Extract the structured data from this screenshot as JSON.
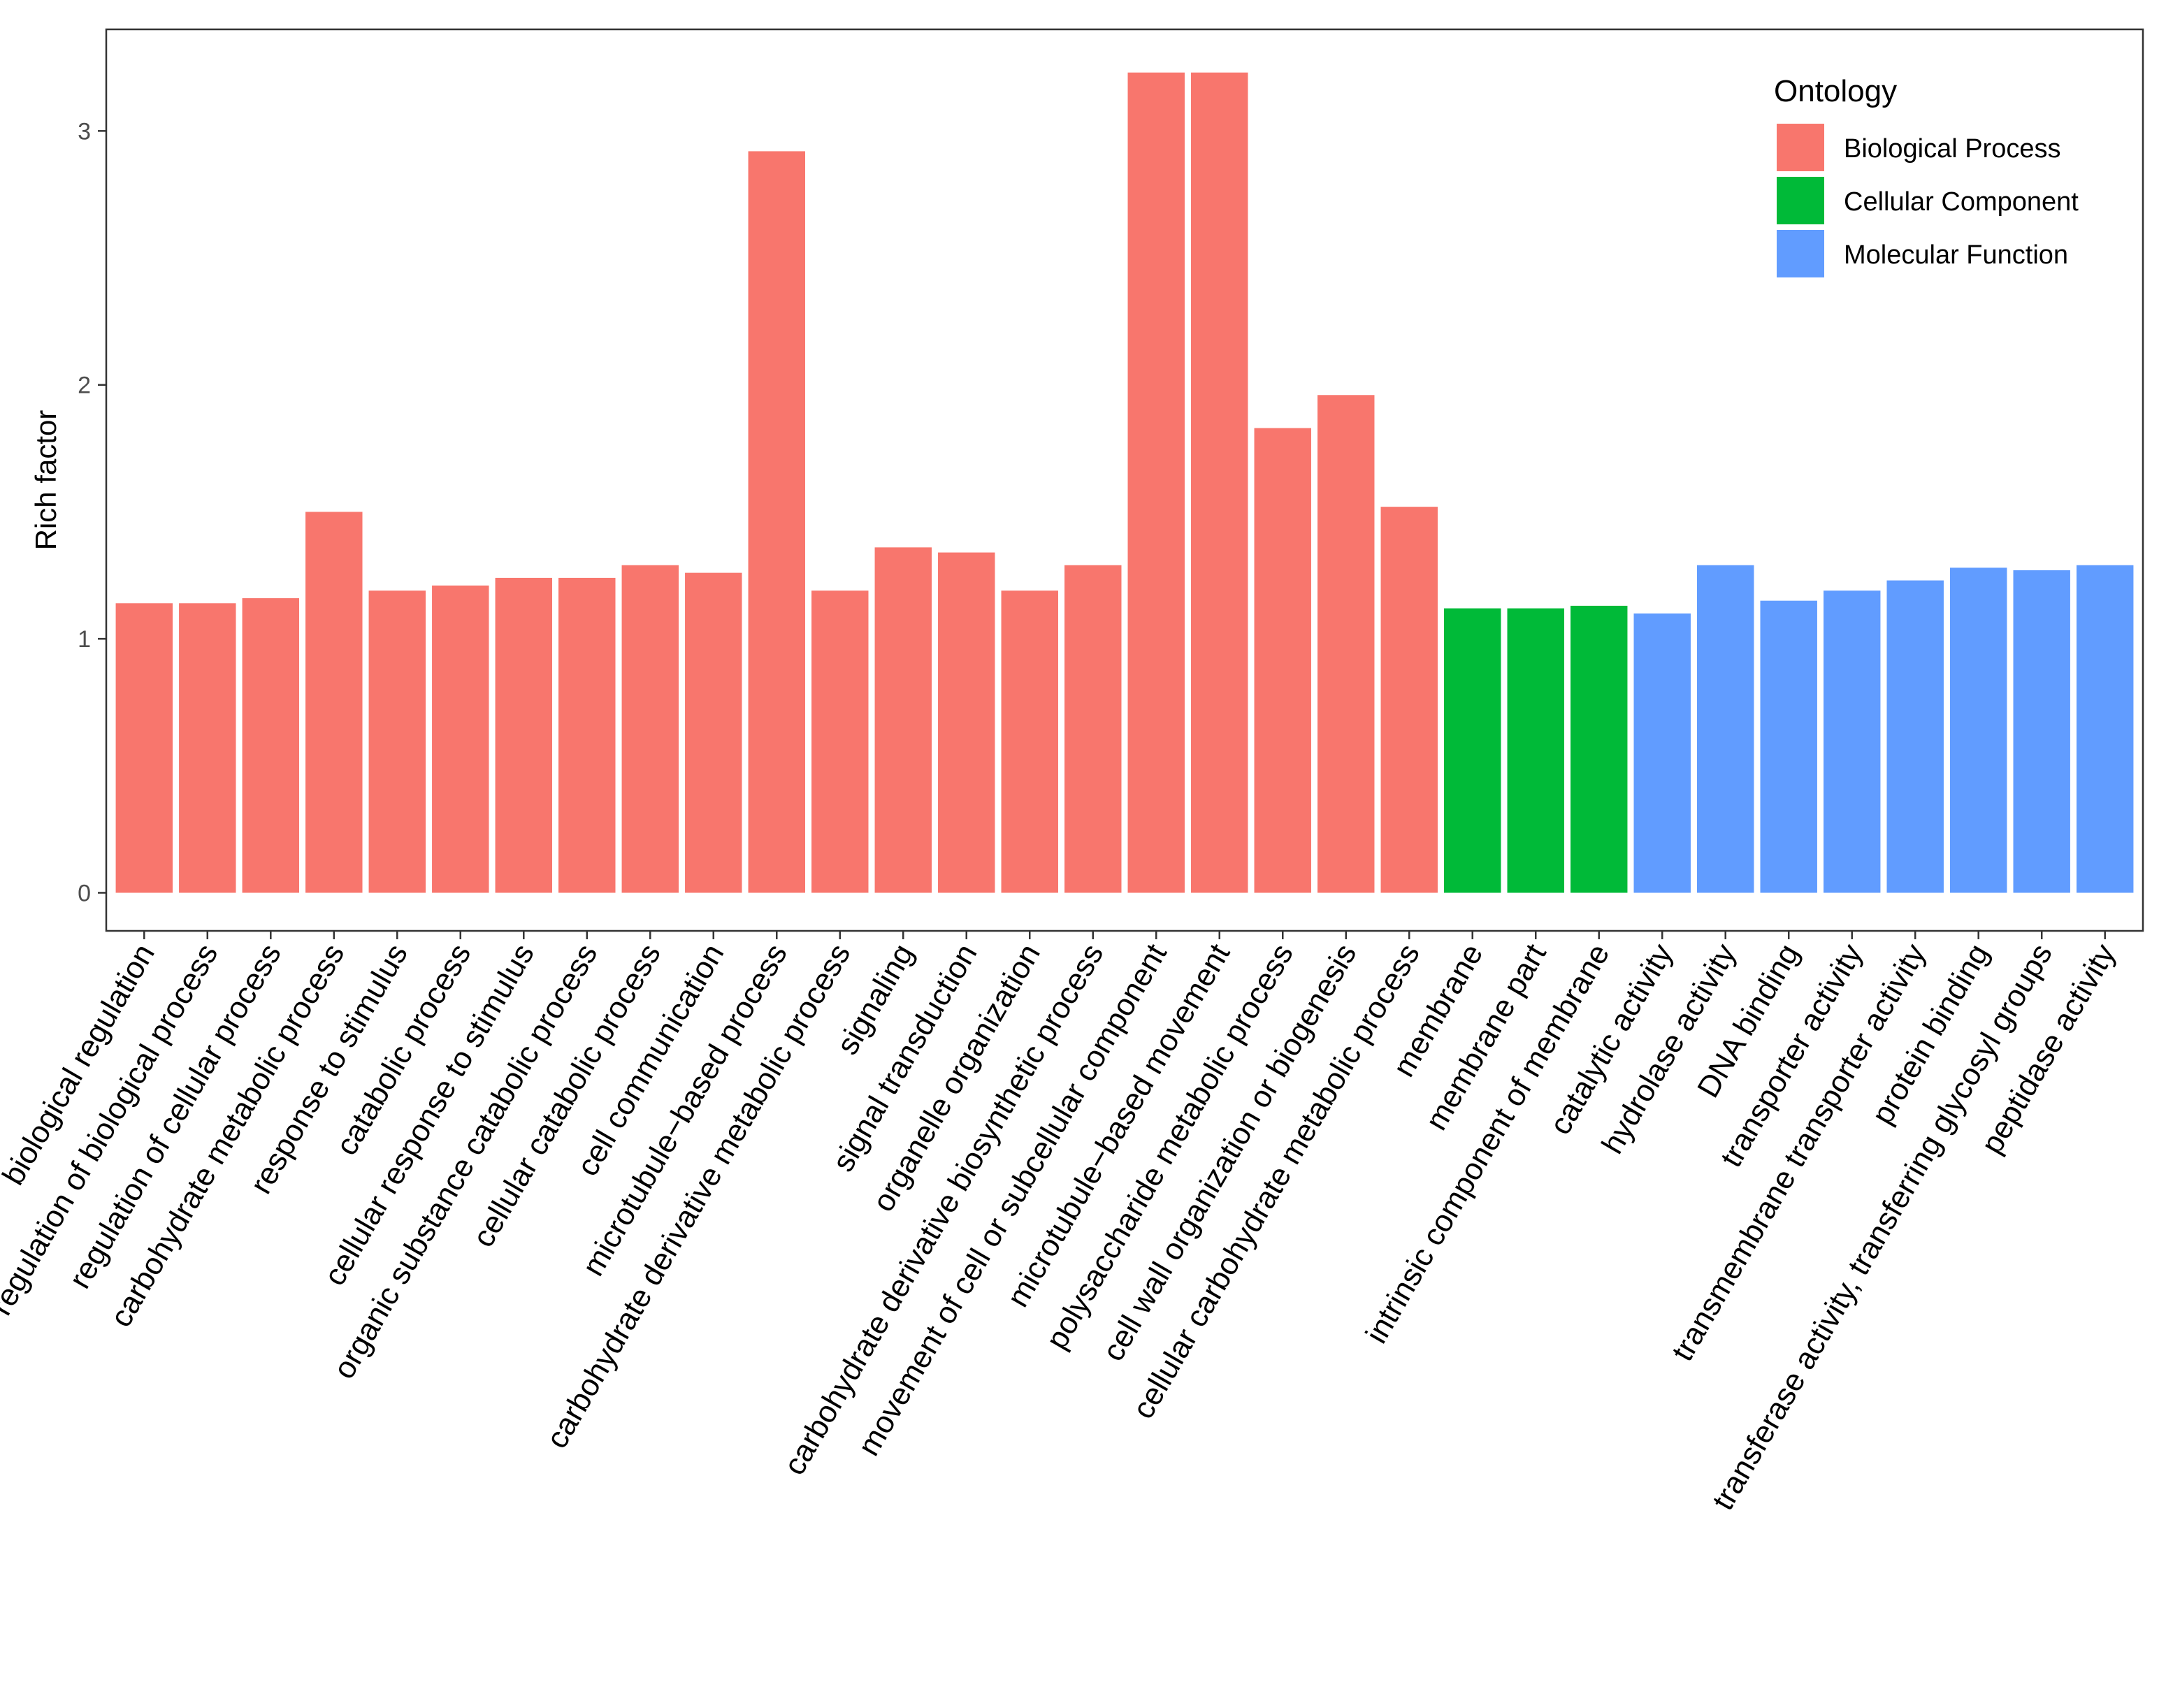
{
  "chart_data": {
    "type": "bar",
    "title": "",
    "xlabel": "",
    "ylabel": "Rich factor",
    "ylim": [
      -0.15,
      3.4
    ],
    "yticks": [
      0,
      1,
      2,
      3
    ],
    "grid": false,
    "legend": {
      "title": "Ontology",
      "position": "top-right",
      "entries": [
        {
          "name": "Biological Process",
          "color": "#F8766D"
        },
        {
          "name": "Cellular Component",
          "color": "#00BA38"
        },
        {
          "name": "Molecular Function",
          "color": "#619CFF"
        }
      ]
    },
    "categories": [
      "biological regulation",
      "regulation of biological process",
      "regulation of cellular process",
      "carbohydrate metabolic process",
      "response to stimulus",
      "catabolic process",
      "cellular response to stimulus",
      "organic substance catabolic process",
      "cellular catabolic process",
      "cell communication",
      "microtubule−based process",
      "carbohydrate derivative metabolic process",
      "signaling",
      "signal transduction",
      "organelle organization",
      "carbohydrate derivative biosynthetic process",
      "movement of cell or subcellular component",
      "microtubule−based movement",
      "polysaccharide metabolic process",
      "cell wall organization or biogenesis",
      "cellular carbohydrate metabolic process",
      "membrane",
      "membrane part",
      "intrinsic component of membrane",
      "catalytic activity",
      "hydrolase activity",
      "DNA binding",
      "transporter activity",
      "transmembrane transporter activity",
      "protein binding",
      "transferase activity, transferring glycosyl groups",
      "peptidase activity"
    ],
    "values": [
      1.14,
      1.14,
      1.16,
      1.5,
      1.19,
      1.21,
      1.24,
      1.24,
      1.29,
      1.26,
      2.92,
      1.19,
      1.36,
      1.34,
      1.19,
      1.29,
      3.23,
      3.23,
      1.83,
      1.96,
      1.52,
      1.12,
      1.12,
      1.13,
      1.1,
      1.29,
      1.15,
      1.19,
      1.23,
      1.28,
      1.27,
      1.29
    ],
    "groups": [
      "Biological Process",
      "Biological Process",
      "Biological Process",
      "Biological Process",
      "Biological Process",
      "Biological Process",
      "Biological Process",
      "Biological Process",
      "Biological Process",
      "Biological Process",
      "Biological Process",
      "Biological Process",
      "Biological Process",
      "Biological Process",
      "Biological Process",
      "Biological Process",
      "Biological Process",
      "Biological Process",
      "Biological Process",
      "Biological Process",
      "Biological Process",
      "Cellular Component",
      "Cellular Component",
      "Cellular Component",
      "Molecular Function",
      "Molecular Function",
      "Molecular Function",
      "Molecular Function",
      "Molecular Function",
      "Molecular Function",
      "Molecular Function",
      "Molecular Function"
    ]
  }
}
